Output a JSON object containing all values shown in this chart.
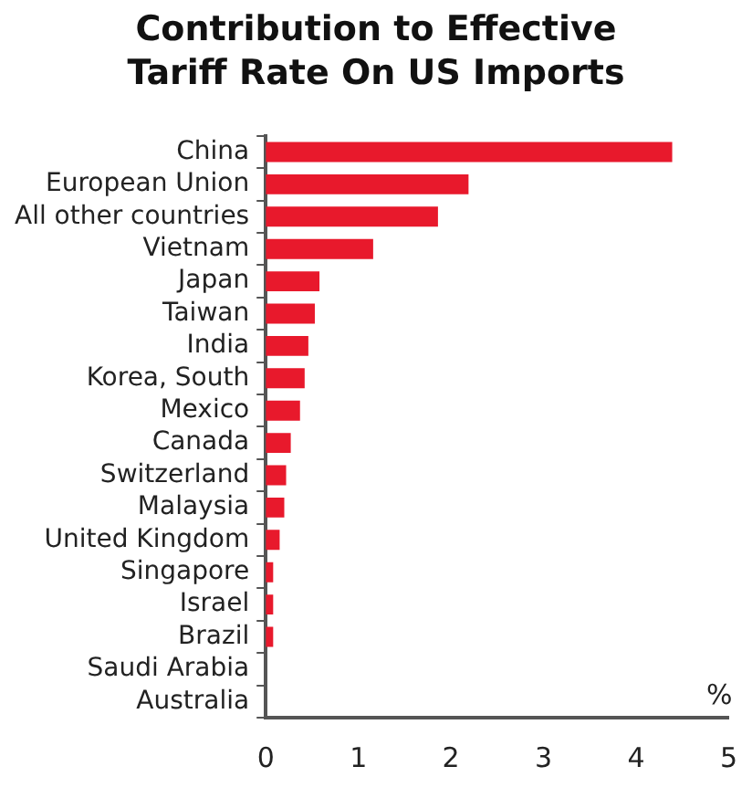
{
  "chart_data": {
    "type": "bar",
    "orientation": "horizontal",
    "title": "Contribution to Effective Tariff Rate On US Imports",
    "categories": [
      "China",
      "European Union",
      "All other countries",
      "Vietnam",
      "Japan",
      "Taiwan",
      "India",
      "Korea, South",
      "Mexico",
      "Canada",
      "Switzerland",
      "Malaysia",
      "United Kingdom",
      "Singapore",
      "Israel",
      "Brazil",
      "Saudi Arabia",
      "Australia"
    ],
    "values": [
      4.39,
      2.19,
      1.86,
      1.16,
      0.58,
      0.53,
      0.46,
      0.42,
      0.37,
      0.27,
      0.22,
      0.2,
      0.15,
      0.08,
      0.08,
      0.08,
      0,
      0
    ],
    "color": "#e8192c",
    "xlabel": "%",
    "xlim": [
      0,
      5
    ],
    "xticks": [
      0,
      1,
      2,
      3,
      4,
      5
    ],
    "grid": false,
    "legend": false
  }
}
